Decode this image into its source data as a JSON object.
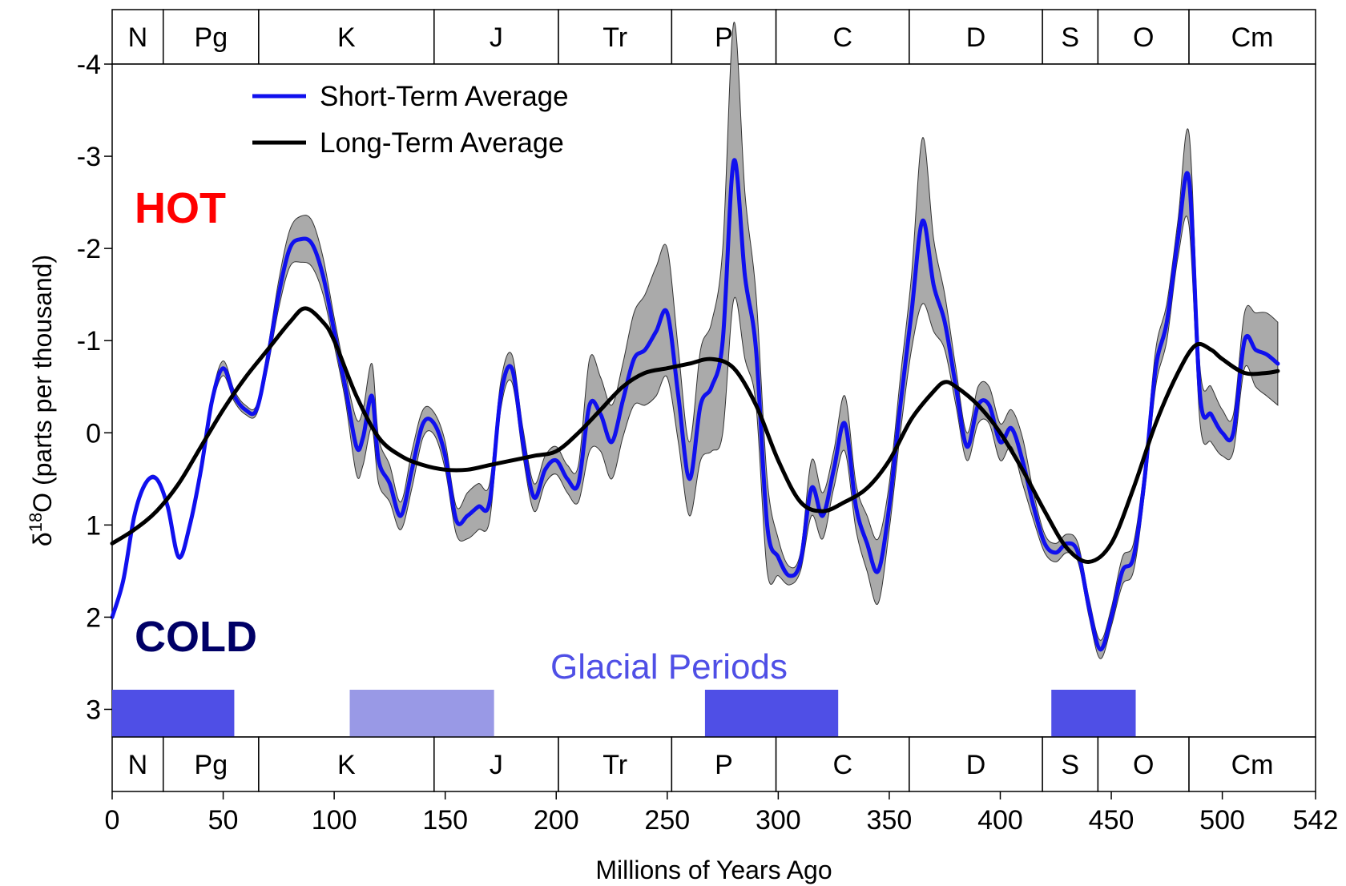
{
  "chart_data": {
    "type": "line",
    "title": "",
    "xlabel": "Millions of Years Ago",
    "ylabel": {
      "prefix": "δ",
      "superscript": "18",
      "suffix": "O (parts per thousand)"
    },
    "xlim": [
      0,
      542
    ],
    "ylim": [
      3.3,
      -4.0
    ],
    "y_inverted": true,
    "x_ticks": [
      0,
      50,
      100,
      150,
      200,
      250,
      300,
      350,
      400,
      450,
      500,
      542
    ],
    "y_ticks": [
      -4,
      -3,
      -2,
      -1,
      0,
      1,
      2,
      3
    ],
    "legend_position": "top-left",
    "series": [
      {
        "name": "Short-Term Average",
        "color": "#1010ee",
        "x": [
          0,
          5,
          10,
          15,
          20,
          25,
          30,
          35,
          40,
          45,
          50,
          55,
          60,
          65,
          70,
          75,
          80,
          85,
          90,
          95,
          100,
          105,
          110,
          113,
          117,
          120,
          125,
          130,
          135,
          140,
          145,
          150,
          155,
          160,
          165,
          170,
          175,
          180,
          185,
          190,
          195,
          200,
          205,
          210,
          215,
          220,
          225,
          230,
          235,
          240,
          245,
          250,
          255,
          260,
          265,
          270,
          275,
          280,
          285,
          290,
          295,
          300,
          305,
          310,
          315,
          320,
          325,
          330,
          335,
          340,
          345,
          350,
          355,
          360,
          365,
          370,
          375,
          380,
          385,
          390,
          395,
          400,
          405,
          410,
          415,
          420,
          425,
          430,
          435,
          440,
          445,
          450,
          455,
          460,
          465,
          470,
          475,
          480,
          485,
          490,
          495,
          500,
          505,
          510,
          515,
          520,
          525
        ],
        "y": [
          2.0,
          1.6,
          0.9,
          0.55,
          0.5,
          0.8,
          1.35,
          1.0,
          0.4,
          -0.35,
          -0.7,
          -0.4,
          -0.25,
          -0.25,
          -0.8,
          -1.5,
          -2.0,
          -2.1,
          -2.05,
          -1.7,
          -1.1,
          -0.5,
          0.15,
          0.05,
          -0.4,
          0.3,
          0.55,
          0.9,
          0.4,
          -0.1,
          -0.1,
          0.25,
          0.95,
          0.9,
          0.8,
          0.75,
          -0.4,
          -0.7,
          0.1,
          0.7,
          0.4,
          0.3,
          0.5,
          0.55,
          -0.3,
          -0.2,
          0.1,
          -0.35,
          -0.8,
          -0.9,
          -1.1,
          -1.3,
          -0.4,
          0.5,
          -0.3,
          -0.5,
          -1.0,
          -2.95,
          -1.7,
          -0.9,
          1.0,
          1.35,
          1.55,
          1.4,
          0.6,
          0.9,
          0.4,
          -0.1,
          0.8,
          1.2,
          1.5,
          0.8,
          -0.3,
          -1.3,
          -2.3,
          -1.6,
          -1.2,
          -0.5,
          0.15,
          -0.3,
          -0.3,
          0.1,
          -0.05,
          0.3,
          0.8,
          1.2,
          1.3,
          1.2,
          1.3,
          1.9,
          2.35,
          2.0,
          1.5,
          1.35,
          0.5,
          -0.7,
          -1.2,
          -2.1,
          -2.75,
          -0.4,
          -0.2,
          0.0,
          0.0,
          -1.0,
          -0.9,
          -0.85,
          -0.75
        ]
      },
      {
        "name": "Long-Term Average",
        "color": "#000000",
        "x": [
          0,
          10,
          20,
          30,
          40,
          50,
          60,
          70,
          80,
          87,
          95,
          100,
          110,
          120,
          130,
          140,
          150,
          160,
          170,
          180,
          190,
          200,
          210,
          220,
          230,
          240,
          250,
          260,
          270,
          280,
          290,
          300,
          310,
          320,
          330,
          340,
          350,
          360,
          370,
          375,
          380,
          390,
          400,
          410,
          420,
          430,
          440,
          450,
          460,
          470,
          480,
          488,
          495,
          500,
          510,
          520,
          525
        ],
        "y": [
          1.2,
          1.05,
          0.85,
          0.55,
          0.15,
          -0.25,
          -0.6,
          -0.9,
          -1.2,
          -1.35,
          -1.2,
          -1.0,
          -0.4,
          0.05,
          0.25,
          0.35,
          0.4,
          0.4,
          0.35,
          0.3,
          0.25,
          0.2,
          0.0,
          -0.25,
          -0.5,
          -0.65,
          -0.7,
          -0.75,
          -0.8,
          -0.7,
          -0.3,
          0.3,
          0.75,
          0.85,
          0.75,
          0.6,
          0.3,
          -0.15,
          -0.45,
          -0.55,
          -0.5,
          -0.3,
          0.0,
          0.4,
          0.85,
          1.25,
          1.4,
          1.2,
          0.6,
          -0.1,
          -0.65,
          -0.95,
          -0.9,
          -0.8,
          -0.65,
          -0.65,
          -0.67
        ]
      }
    ],
    "uncertainty_band": {
      "color": "#aaaaaa",
      "x": [
        0,
        5,
        10,
        15,
        20,
        25,
        30,
        35,
        40,
        45,
        50,
        55,
        60,
        65,
        70,
        75,
        80,
        85,
        90,
        95,
        100,
        105,
        110,
        113,
        117,
        120,
        125,
        130,
        135,
        140,
        145,
        150,
        155,
        160,
        165,
        170,
        175,
        180,
        185,
        190,
        195,
        200,
        205,
        210,
        215,
        220,
        225,
        230,
        235,
        240,
        245,
        250,
        255,
        260,
        265,
        270,
        275,
        280,
        285,
        290,
        295,
        300,
        305,
        310,
        315,
        320,
        325,
        330,
        335,
        340,
        345,
        350,
        355,
        360,
        365,
        370,
        375,
        380,
        385,
        390,
        395,
        400,
        405,
        410,
        415,
        420,
        425,
        430,
        435,
        440,
        445,
        450,
        455,
        460,
        465,
        470,
        475,
        480,
        485,
        490,
        495,
        500,
        505,
        510,
        515,
        520,
        525
      ],
      "half_width": [
        0.02,
        0.02,
        0.02,
        0.02,
        0.02,
        0.02,
        0.02,
        0.03,
        0.05,
        0.06,
        0.08,
        0.06,
        0.05,
        0.05,
        0.1,
        0.15,
        0.2,
        0.25,
        0.25,
        0.2,
        0.15,
        0.15,
        0.3,
        0.3,
        0.35,
        0.25,
        0.2,
        0.15,
        0.2,
        0.15,
        0.12,
        0.15,
        0.15,
        0.25,
        0.25,
        0.2,
        0.15,
        0.15,
        0.15,
        0.15,
        0.15,
        0.15,
        0.15,
        0.2,
        0.5,
        0.4,
        0.4,
        0.4,
        0.5,
        0.6,
        0.7,
        0.7,
        0.5,
        0.4,
        0.6,
        0.7,
        1.0,
        1.5,
        0.9,
        0.6,
        0.5,
        0.2,
        0.1,
        0.1,
        0.3,
        0.25,
        0.2,
        0.3,
        0.25,
        0.3,
        0.35,
        0.25,
        0.3,
        0.4,
        0.9,
        0.5,
        0.3,
        0.2,
        0.15,
        0.2,
        0.2,
        0.2,
        0.2,
        0.25,
        0.15,
        0.1,
        0.1,
        0.1,
        0.1,
        0.1,
        0.1,
        0.1,
        0.15,
        0.15,
        0.15,
        0.2,
        0.2,
        0.2,
        0.5,
        0.3,
        0.3,
        0.25,
        0.2,
        0.3,
        0.4,
        0.45,
        0.45
      ]
    },
    "periods": [
      {
        "label": "N",
        "start": 0,
        "end": 23
      },
      {
        "label": "Pg",
        "start": 23,
        "end": 66
      },
      {
        "label": "K",
        "start": 66,
        "end": 145
      },
      {
        "label": "J",
        "start": 145,
        "end": 201
      },
      {
        "label": "Tr",
        "start": 201,
        "end": 252
      },
      {
        "label": "P",
        "start": 252,
        "end": 299
      },
      {
        "label": "C",
        "start": 299,
        "end": 359
      },
      {
        "label": "D",
        "start": 359,
        "end": 419
      },
      {
        "label": "S",
        "start": 419,
        "end": 444
      },
      {
        "label": "O",
        "start": 444,
        "end": 485
      },
      {
        "label": "Cm",
        "start": 485,
        "end": 542
      }
    ],
    "glacial_label": "Glacial Periods",
    "glacial_periods": [
      {
        "start": 0,
        "end": 55,
        "color": "#4f4fe6"
      },
      {
        "start": 107,
        "end": 172,
        "color": "#9999e6"
      },
      {
        "start": 267,
        "end": 327,
        "color": "#4f4fe6"
      },
      {
        "start": 423,
        "end": 461,
        "color": "#4f4fe6"
      }
    ],
    "annotations": {
      "hot": {
        "text": "HOT",
        "color": "#ff0000"
      },
      "cold": {
        "text": "COLD",
        "color": "#000066"
      }
    }
  }
}
